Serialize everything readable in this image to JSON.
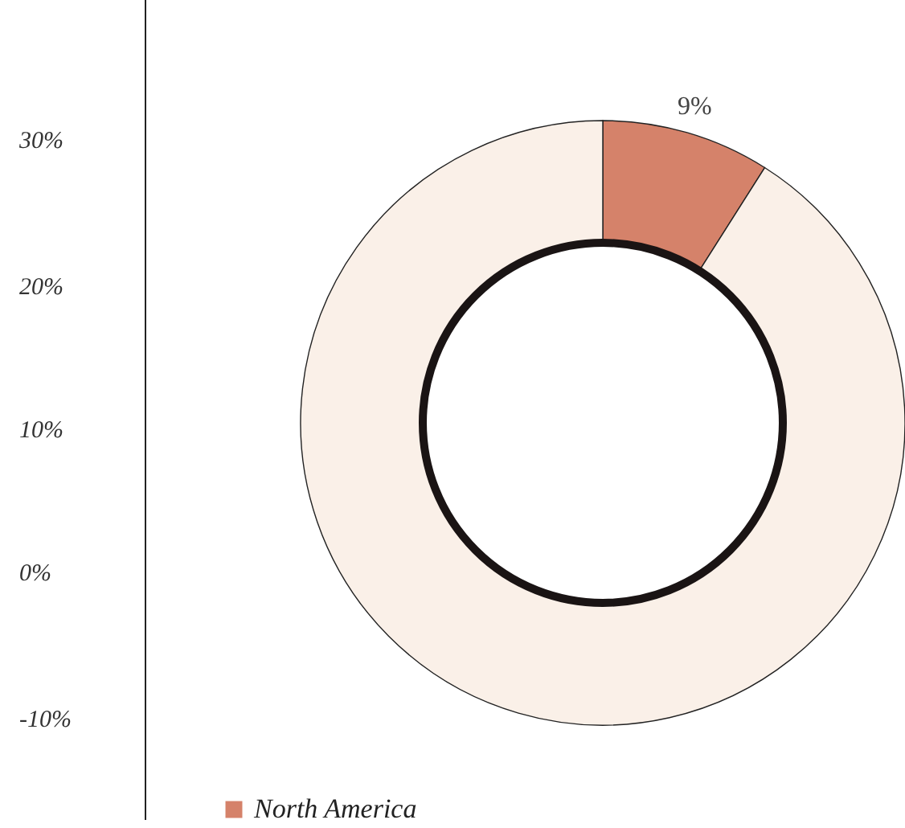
{
  "chart_data": {
    "type": "donut",
    "categories": [
      "North America",
      null
    ],
    "values": [
      9,
      91
    ],
    "colors": [
      "#d5826a",
      "#faf0e8"
    ],
    "value_labels": [
      "9%",
      null
    ],
    "legend": "bottom left",
    "annotations": [
      "30%",
      "20%",
      "10%",
      "0%",
      "-10%"
    ]
  }
}
